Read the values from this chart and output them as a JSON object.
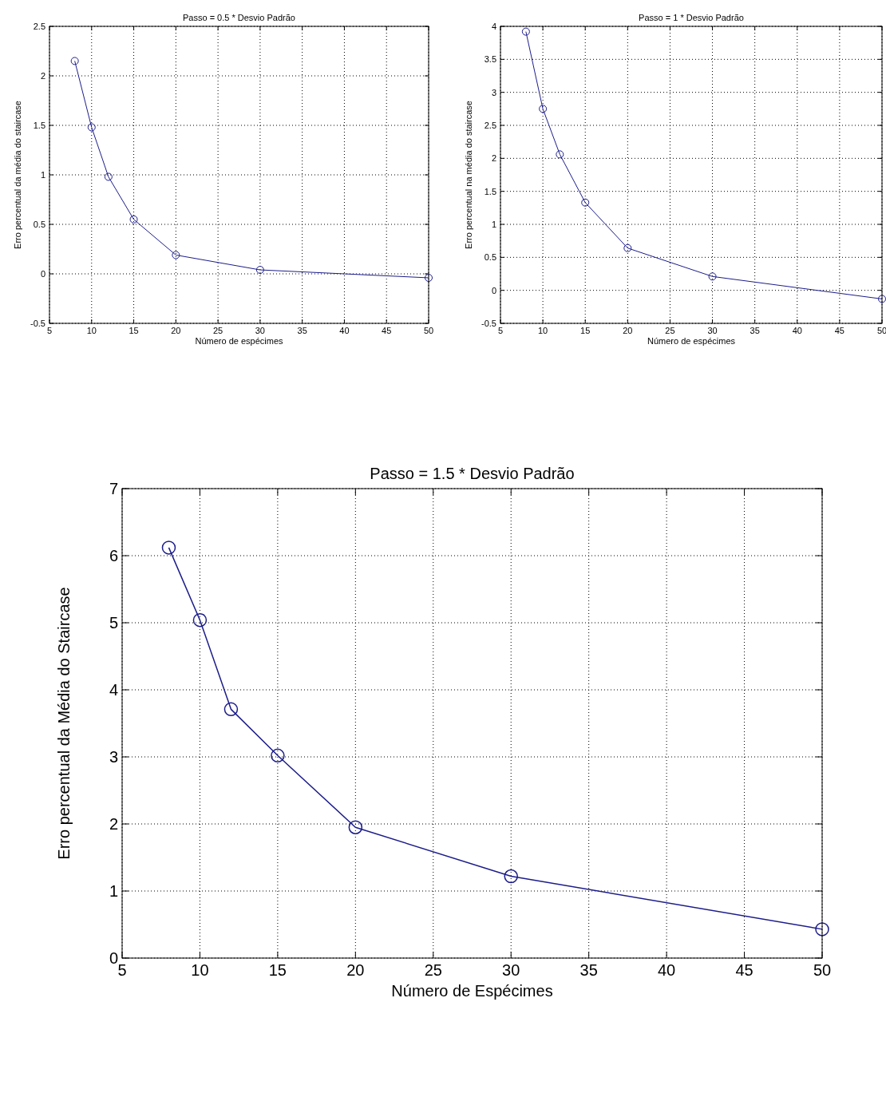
{
  "chart_data": [
    {
      "type": "line",
      "title": "Passo = 0.5 * Desvio Padrão",
      "xlabel": "Número de espécimes",
      "ylabel": "Erro percentual da média do staircase",
      "x": [
        8,
        10,
        12,
        15,
        20,
        30,
        50
      ],
      "series": [
        {
          "color": "#1c1c8a",
          "values": [
            2.15,
            1.48,
            0.98,
            0.55,
            0.19,
            0.04,
            -0.04
          ]
        }
      ],
      "xlim": [
        5,
        50
      ],
      "xticks": [
        5,
        10,
        15,
        20,
        25,
        30,
        35,
        40,
        45,
        50
      ],
      "ylim": [
        -0.5,
        2.5
      ],
      "yticks": [
        -0.5,
        0,
        0.5,
        1,
        1.5,
        2,
        2.5
      ],
      "grid": true,
      "marker": "circle",
      "line_style": "solid"
    },
    {
      "type": "line",
      "title": "Passo = 1 * Desvio Padrão",
      "xlabel": "Número de espécimes",
      "ylabel": "Erro percentual na média do staircase",
      "x": [
        8,
        10,
        12,
        15,
        20,
        30,
        50
      ],
      "series": [
        {
          "color": "#1c1c8a",
          "values": [
            3.92,
            2.75,
            2.06,
            1.33,
            0.64,
            0.21,
            -0.13
          ]
        }
      ],
      "xlim": [
        5,
        50
      ],
      "xticks": [
        5,
        10,
        15,
        20,
        25,
        30,
        35,
        40,
        45,
        50
      ],
      "ylim": [
        -0.5,
        4
      ],
      "yticks": [
        -0.5,
        0,
        0.5,
        1,
        1.5,
        2,
        2.5,
        3,
        3.5,
        4
      ],
      "grid": true,
      "marker": "circle",
      "line_style": "solid"
    },
    {
      "type": "line",
      "title": "Passo = 1.5 * Desvio Padrão",
      "xlabel": "Número de Espécimes",
      "ylabel": "Erro percentual da Média do Staircase",
      "x": [
        8,
        10,
        12,
        15,
        20,
        30,
        50
      ],
      "series": [
        {
          "color": "#1c1c8a",
          "values": [
            6.12,
            5.04,
            3.71,
            3.02,
            1.95,
            1.22,
            0.43
          ]
        }
      ],
      "xlim": [
        5,
        50
      ],
      "xticks": [
        5,
        10,
        15,
        20,
        25,
        30,
        35,
        40,
        45,
        50
      ],
      "ylim": [
        0,
        7
      ],
      "yticks": [
        0,
        1,
        2,
        3,
        4,
        5,
        6,
        7
      ],
      "grid": true,
      "marker": "circle",
      "line_style": "solid"
    }
  ]
}
